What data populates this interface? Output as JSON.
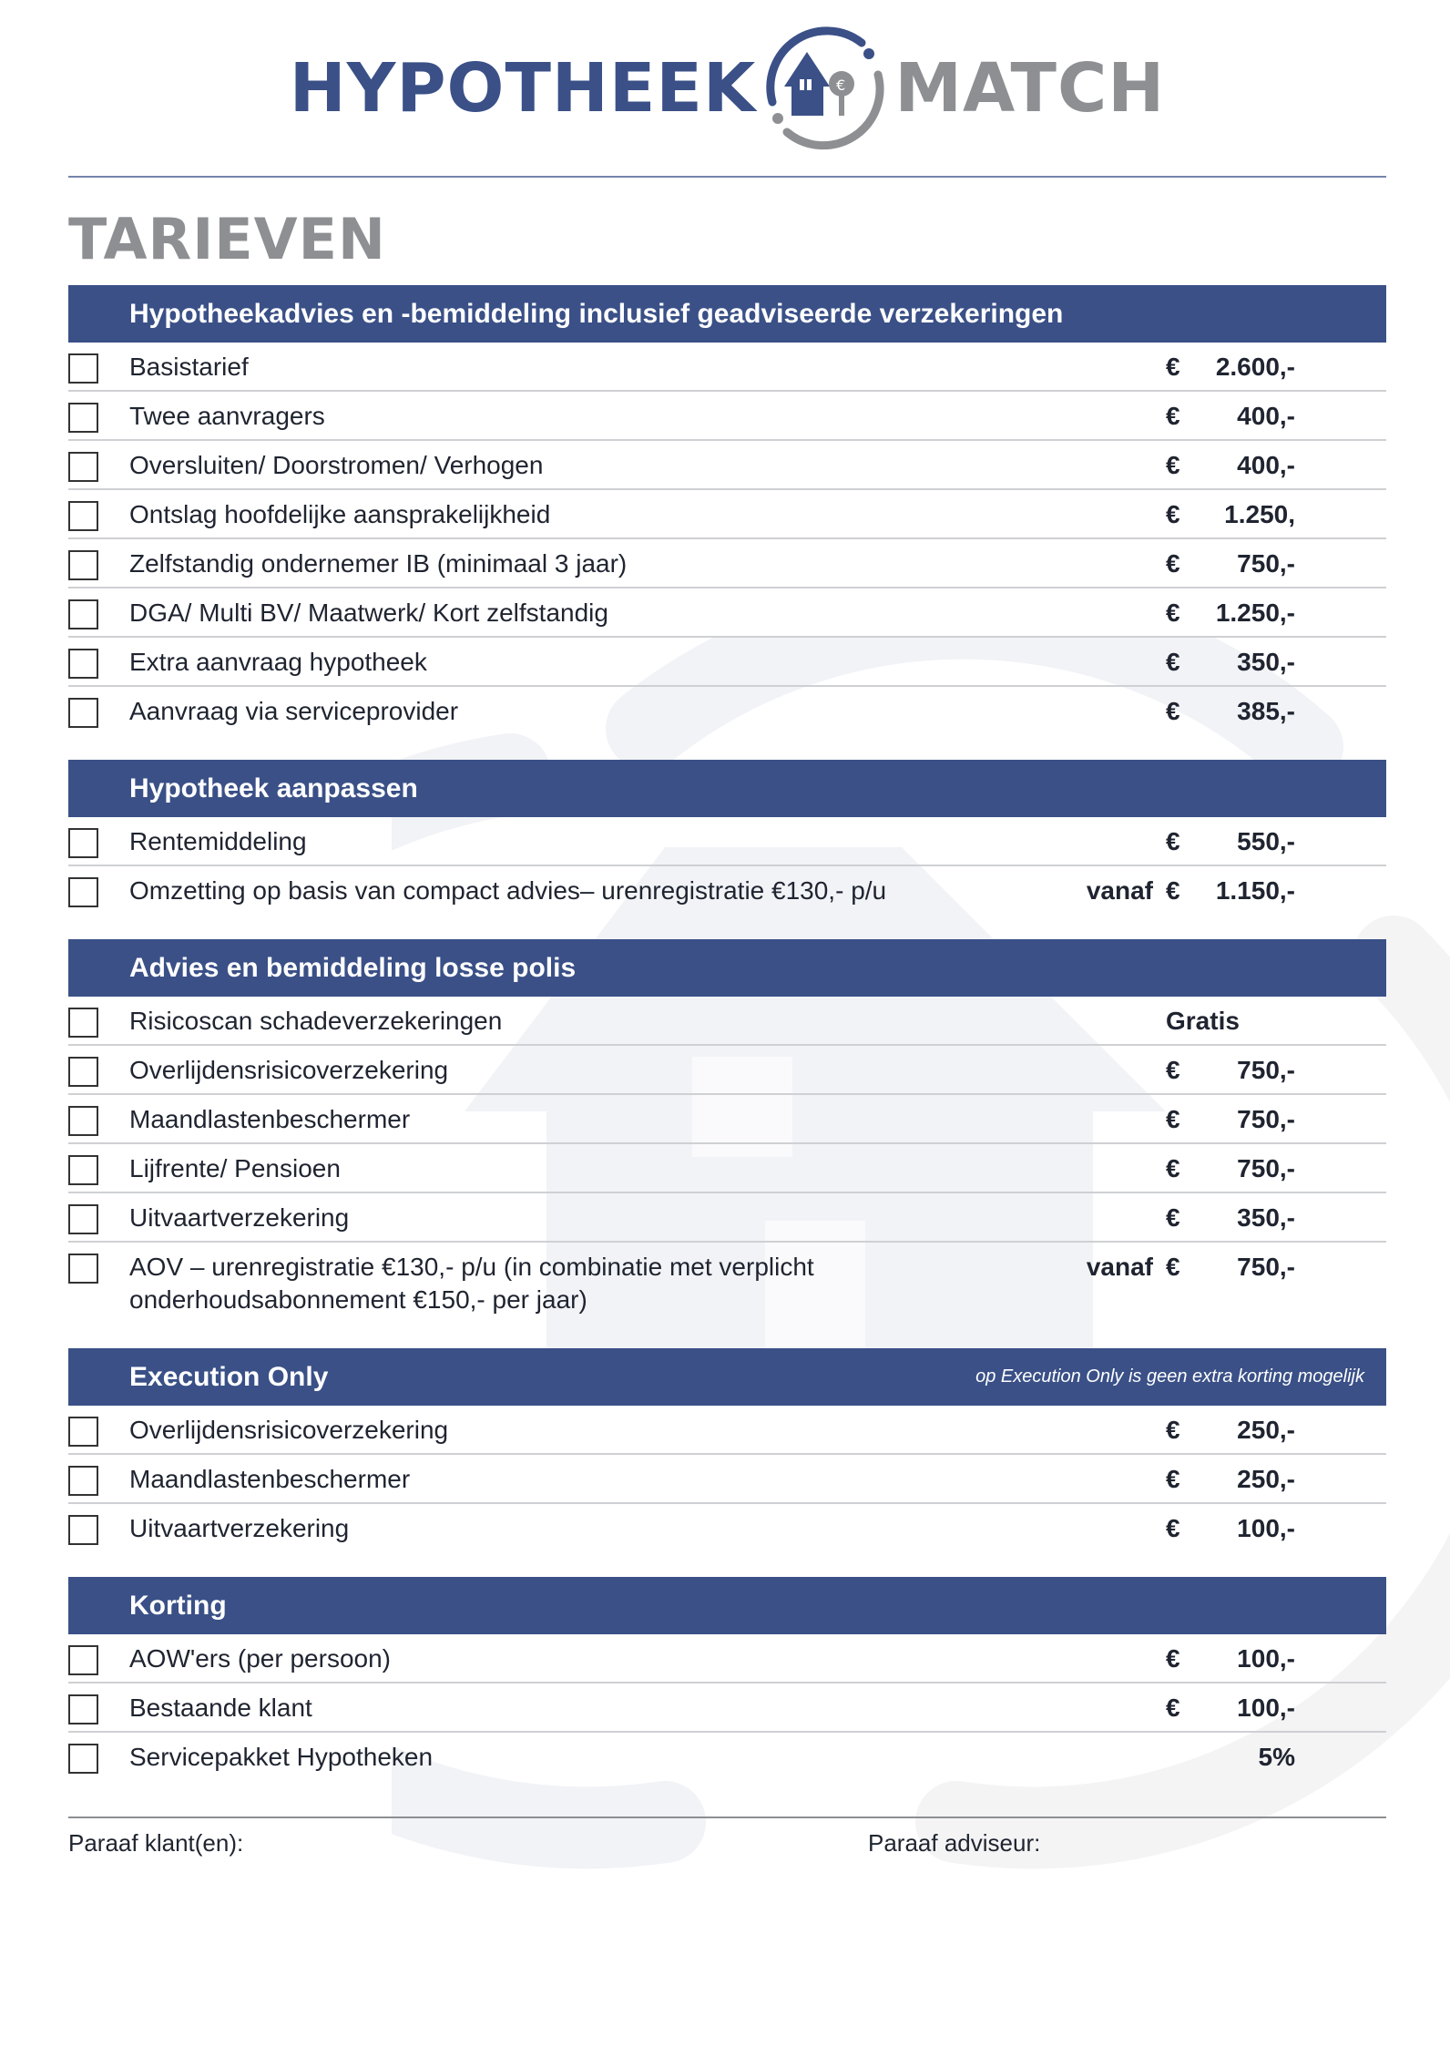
{
  "logo": {
    "left": "HYPOTHEEK",
    "right": "MATCH",
    "colors": {
      "blue": "#3a5087",
      "grey": "#8d8f92"
    }
  },
  "title": "TARIEVEN",
  "sections": [
    {
      "title": "Hypotheekadvies en -bemiddeling inclusief geadviseerde verzekeringen",
      "note": "",
      "rows": [
        {
          "label": "Basistarief",
          "prefix": "",
          "currency": "€",
          "amount": "2.600,-"
        },
        {
          "label": "Twee aanvragers",
          "prefix": "",
          "currency": "€",
          "amount": "400,-"
        },
        {
          "label": "Oversluiten/ Doorstromen/ Verhogen",
          "prefix": "",
          "currency": "€",
          "amount": "400,-"
        },
        {
          "label": "Ontslag hoofdelijke aansprakelijkheid",
          "prefix": "",
          "currency": "€",
          "amount": "1.250,"
        },
        {
          "label": "Zelfstandig ondernemer IB (minimaal 3 jaar)",
          "prefix": "",
          "currency": "€",
          "amount": "750,-"
        },
        {
          "label": "DGA/ Multi BV/ Maatwerk/ Kort zelfstandig",
          "prefix": "",
          "currency": "€",
          "amount": "1.250,-"
        },
        {
          "label": "Extra aanvraag hypotheek",
          "prefix": "",
          "currency": "€",
          "amount": "350,-"
        },
        {
          "label": "Aanvraag via serviceprovider",
          "prefix": "",
          "currency": "€",
          "amount": "385,-"
        }
      ]
    },
    {
      "title": "Hypotheek aanpassen",
      "note": "",
      "rows": [
        {
          "label": "Rentemiddeling",
          "prefix": "",
          "currency": "€",
          "amount": "550,-"
        },
        {
          "label": "Omzetting op basis van compact advies– urenregistratie €130,- p/u",
          "prefix": "vanaf",
          "currency": "€",
          "amount": "1.150,-"
        }
      ]
    },
    {
      "title": "Advies en bemiddeling losse polis",
      "note": "",
      "rows": [
        {
          "label": "Risicoscan schadeverzekeringen",
          "prefix": "",
          "currency": "",
          "amount": "",
          "free": "Gratis"
        },
        {
          "label": "Overlijdensrisicoverzekering",
          "prefix": "",
          "currency": "€",
          "amount": "750,-"
        },
        {
          "label": "Maandlastenbeschermer",
          "prefix": "",
          "currency": "€",
          "amount": "750,-"
        },
        {
          "label": "Lijfrente/ Pensioen",
          "prefix": "",
          "currency": "€",
          "amount": "750,-"
        },
        {
          "label": "Uitvaartverzekering",
          "prefix": "",
          "currency": "€",
          "amount": "350,-"
        },
        {
          "label": "AOV – urenregistratie €130,- p/u (in combinatie met verplicht onderhoudsabonnement €150,- per jaar)",
          "prefix": "vanaf",
          "currency": "€",
          "amount": "750,-"
        }
      ]
    },
    {
      "title": "Execution Only",
      "note": "op Execution Only is geen extra korting mogelijk",
      "rows": [
        {
          "label": "Overlijdensrisicoverzekering",
          "prefix": "",
          "currency": "€",
          "amount": "250,-"
        },
        {
          "label": "Maandlastenbeschermer",
          "prefix": "",
          "currency": "€",
          "amount": "250,-"
        },
        {
          "label": "Uitvaartverzekering",
          "prefix": "",
          "currency": "€",
          "amount": "100,-"
        }
      ]
    },
    {
      "title": "Korting",
      "note": "",
      "rows": [
        {
          "label": "AOW'ers (per persoon)",
          "prefix": "",
          "currency": "€",
          "amount": "100,-"
        },
        {
          "label": "Bestaande klant",
          "prefix": "",
          "currency": "€",
          "amount": "100,-"
        },
        {
          "label": "Servicepakket Hypotheken",
          "prefix": "",
          "currency": "",
          "amount": "5%"
        }
      ]
    }
  ],
  "signatures": {
    "client": "Paraaf klant(en):",
    "advisor": "Paraaf adviseur:"
  }
}
